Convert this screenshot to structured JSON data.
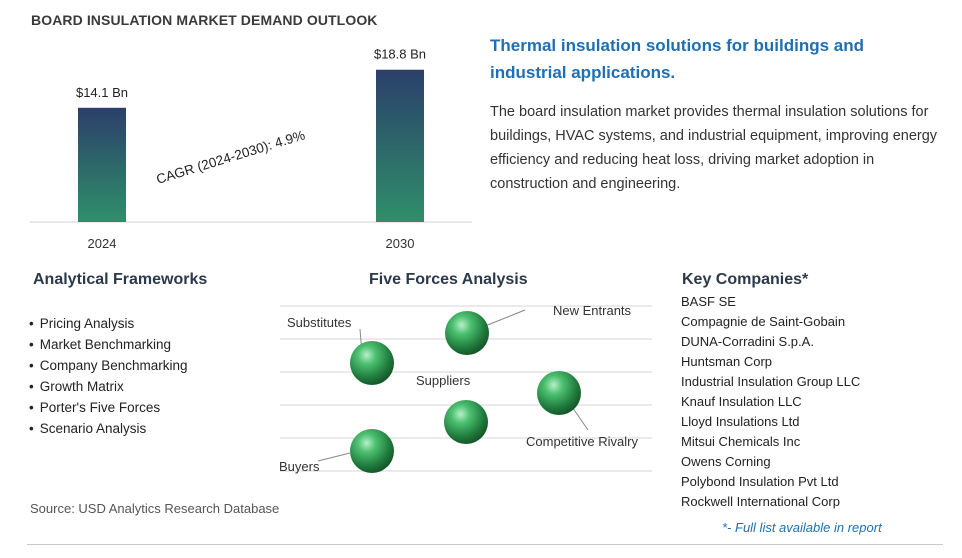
{
  "chart_data": {
    "type": "bar",
    "title": "BOARD INSULATION MARKET DEMAND OUTLOOK",
    "categories": [
      "2024",
      "2030"
    ],
    "values": [
      14.1,
      18.8
    ],
    "data_labels": [
      "$14.1 Bn",
      "$18.8 Bn"
    ],
    "annotation": "CAGR (2024-2030):  4.9%",
    "colors": {
      "bar_top": "#2b3f6a",
      "bar_bottom": "#2f8f6a"
    }
  },
  "headline": "Thermal insulation solutions for buildings and industrial applications.",
  "description": "The board insulation market provides thermal insulation solutions for buildings, HVAC systems, and industrial equipment, improving energy efficiency and reducing heat loss, driving market adoption in construction and engineering.",
  "frameworks": {
    "title": "Analytical Frameworks",
    "items": [
      "Pricing Analysis",
      "Market Benchmarking",
      "Company Benchmarking",
      "Growth Matrix",
      "Porter's Five Forces",
      "Scenario Analysis"
    ]
  },
  "five_forces": {
    "title": "Five Forces Analysis",
    "labels": [
      "Substitutes",
      "New Entrants",
      "Suppliers",
      "Competitive Rivalry",
      "Buyers"
    ],
    "sphere_color": "#2e9a55"
  },
  "companies": {
    "title": "Key Companies*",
    "items": [
      "BASF SE",
      "Compagnie de Saint-Gobain",
      "DUNA-Corradini S.p.A.",
      "Huntsman Corp",
      "Industrial Insulation Group LLC",
      "Knauf Insulation LLC",
      "Lloyd Insulations Ltd",
      "Mitsui Chemicals Inc",
      "Owens Corning",
      "Polybond Insulation Pvt Ltd",
      "Rockwell International Corp"
    ],
    "footnote": "*- Full list available in report"
  },
  "source": "Source: USD Analytics Research Database"
}
